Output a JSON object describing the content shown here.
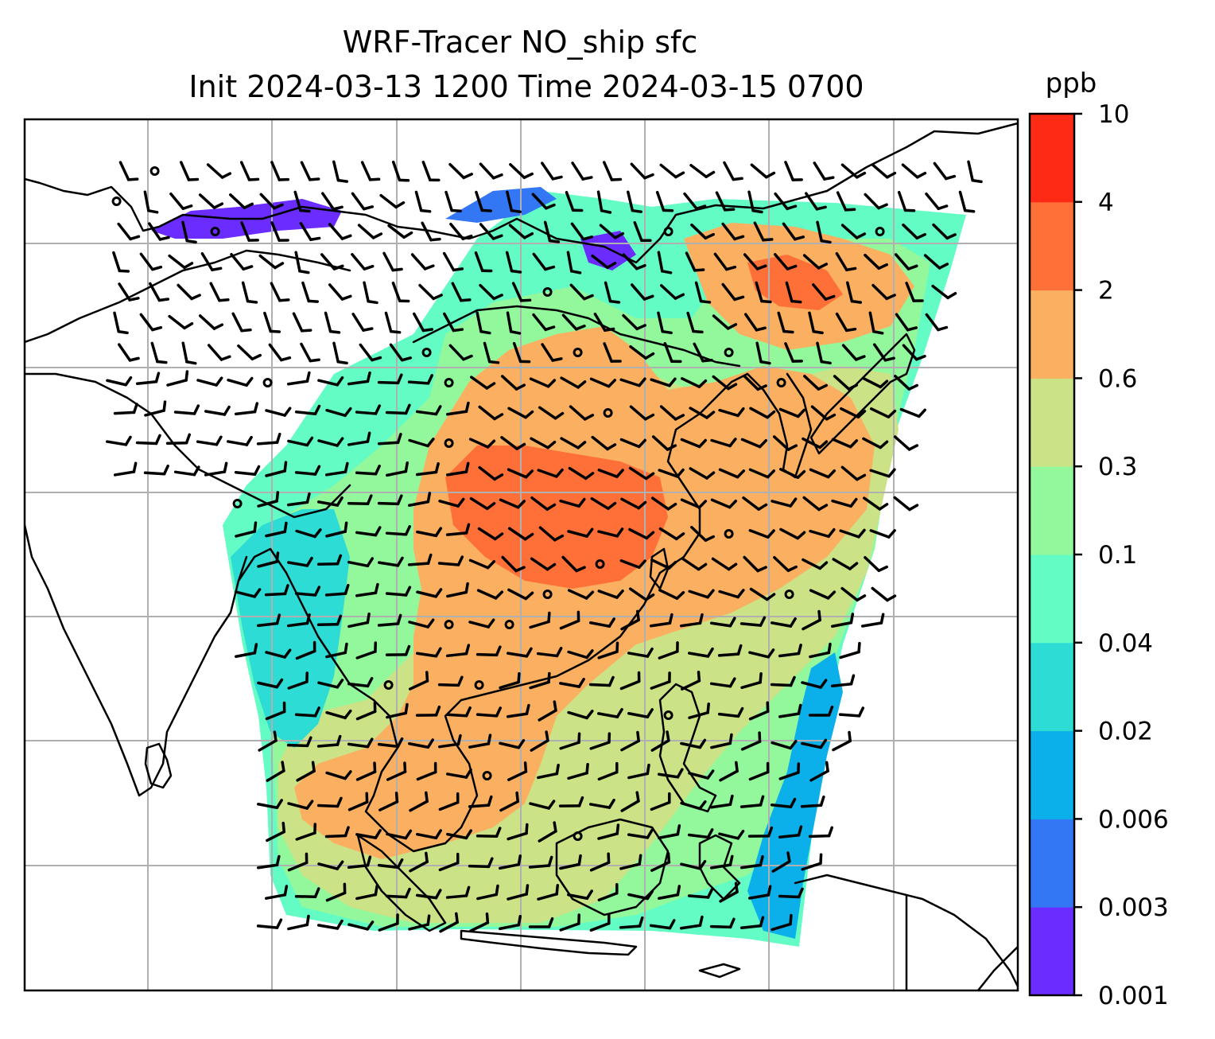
{
  "figure": {
    "title_line1": "WRF-Tracer NO_ship sfc",
    "title_line2": "Init 2024-03-13 1200 Time 2024-03-15 0700"
  },
  "colorbar": {
    "unit_label": "ppb",
    "tick_labels": [
      "0.001",
      "0.003",
      "0.006",
      "0.02",
      "0.04",
      "0.1",
      "0.3",
      "0.6",
      "2",
      "4",
      "10"
    ],
    "colors": [
      "#6a2cff",
      "#3377f5",
      "#0bb0ea",
      "#2ddcd4",
      "#62fcc4",
      "#93f89c",
      "#cbe286",
      "#fbaf60",
      "#ff7038",
      "#ff2a16"
    ]
  },
  "map": {
    "gridlines": "on",
    "coastlines": "on",
    "field": "NO_ship surface concentration with wind barbs"
  }
}
